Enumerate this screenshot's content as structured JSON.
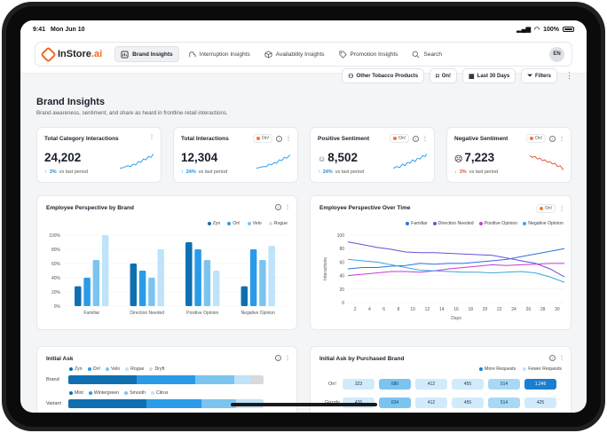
{
  "status": {
    "time": "9:41",
    "date": "Mon Jun 10",
    "battery": "100%"
  },
  "nav": {
    "brand": "InStore",
    "brand_suffix": ".ai",
    "tabs": [
      {
        "label": "Brand Insights",
        "icon": "brand-icon"
      },
      {
        "label": "Interruption Insights",
        "icon": "interrupt-icon"
      },
      {
        "label": "Availability Insights",
        "icon": "box-icon"
      },
      {
        "label": "Promotion Insights",
        "icon": "tag-icon"
      },
      {
        "label": "Search",
        "icon": "search-icon"
      }
    ],
    "avatar": "EN"
  },
  "toolbar": {
    "category": "Other Tobacco Products",
    "brand": "On!",
    "period": "Last 30 Days",
    "filters": "Filters"
  },
  "page": {
    "title": "Brand Insights",
    "subtitle": "Brand awareness, sentiment, and share as heard in frontline retail interactions."
  },
  "kpis": [
    {
      "title": "Total Category Interactions",
      "value": "24,202",
      "delta": "3%",
      "delta_label": "vs last period",
      "trend": "up",
      "tag": ""
    },
    {
      "title": "Total  Interactions",
      "value": "12,304",
      "delta": "24%",
      "delta_label": "vs last period",
      "trend": "up",
      "tag": "On!"
    },
    {
      "title": "Positive Sentiment",
      "value": "8,502",
      "delta": "24%",
      "delta_label": "vs last period",
      "trend": "up",
      "tag": "On!"
    },
    {
      "title": "Negative Sentiment",
      "value": "7,223",
      "delta": "3%",
      "delta_label": "vs last period",
      "trend": "down",
      "tag": "On!"
    }
  ],
  "colors": {
    "c1": "#0f6fb0",
    "c2": "#2a9be8",
    "c3": "#7cc4f0",
    "c4": "#bfe3f8",
    "familiar": "#2f6fe0",
    "direction": "#6b4fd8",
    "positive": "#c63ad6",
    "negative": "#39a7e0",
    "accent": "#f06a2b"
  },
  "chart_data": [
    {
      "type": "bar",
      "title": "Employee Perspective by Brand",
      "categories": [
        "Familiar",
        "Direction Needed",
        "Positive Opinion",
        "Negative Opinion"
      ],
      "series": [
        {
          "name": "Zyn",
          "values": [
            28,
            60,
            90,
            28
          ]
        },
        {
          "name": "On!",
          "values": [
            40,
            50,
            80,
            80
          ]
        },
        {
          "name": "Velo",
          "values": [
            65,
            40,
            65,
            65
          ]
        },
        {
          "name": "Rogue",
          "values": [
            100,
            80,
            50,
            85
          ]
        }
      ],
      "ylim": [
        0,
        100
      ],
      "yticks": [
        "0%",
        "20%",
        "40%",
        "60%",
        "80%",
        "100%"
      ]
    },
    {
      "type": "line",
      "title": "Employee Perspective Over Time",
      "tag": "On!",
      "ylabel": "Interactions",
      "xlabel": "Days",
      "xticks": [
        "2",
        "4",
        "6",
        "8",
        "10",
        "12",
        "14",
        "16",
        "18",
        "20",
        "22",
        "24",
        "26",
        "28",
        "30"
      ],
      "yticks": [
        "0",
        "20",
        "40",
        "60",
        "80",
        "100"
      ],
      "x": [
        1,
        3,
        5,
        7,
        9,
        11,
        13,
        15,
        17,
        19,
        21,
        23,
        25,
        27,
        29,
        31
      ],
      "series": [
        {
          "name": "Familiar",
          "values": [
            50,
            52,
            52,
            54,
            55,
            58,
            57,
            58,
            58,
            60,
            62,
            64,
            68,
            72,
            76,
            80
          ]
        },
        {
          "name": "Direction Needed",
          "values": [
            90,
            86,
            82,
            79,
            75,
            74,
            74,
            73,
            72,
            71,
            70,
            66,
            62,
            58,
            50,
            38
          ]
        },
        {
          "name": "Positive Opinion",
          "values": [
            40,
            42,
            44,
            46,
            46,
            45,
            47,
            50,
            52,
            54,
            56,
            55,
            56,
            57,
            58,
            58
          ]
        },
        {
          "name": "Negative Opinion",
          "values": [
            64,
            62,
            60,
            56,
            52,
            48,
            47,
            46,
            45,
            45,
            44,
            45,
            46,
            44,
            38,
            30
          ]
        }
      ],
      "ylim": [
        0,
        100
      ]
    }
  ],
  "initial_ask": {
    "title": "Initial Ask",
    "legend1": [
      "Zyn",
      "On!",
      "Velo",
      "Rogue",
      "Dryft"
    ],
    "legend2": [
      "Mint",
      "Wintergreen",
      "Smooth",
      "Citrus"
    ],
    "rows": [
      "Brand",
      "Variant"
    ],
    "brand_values": [
      35,
      30,
      20,
      8,
      7
    ],
    "variant_values": [
      40,
      28,
      18,
      14
    ]
  },
  "initial_ask_purchased": {
    "title": "Initial Ask by Purchased Brand",
    "legend": [
      "More Requests",
      "Fewer Requests"
    ],
    "rows": [
      {
        "label": "On!",
        "cells": [
          "323",
          "680",
          "412",
          "455",
          "514",
          "1,246"
        ]
      },
      {
        "label": "Grizzly",
        "cells": [
          "426",
          "634",
          "412",
          "455",
          "514",
          "425"
        ]
      }
    ]
  }
}
